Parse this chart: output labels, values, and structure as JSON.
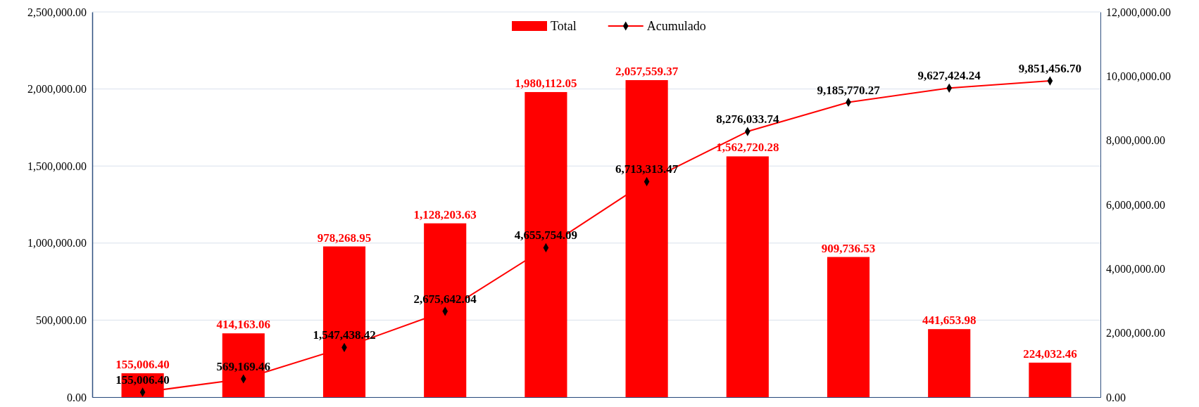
{
  "chart_data": {
    "type": "bar",
    "categories": [
      null,
      null,
      null,
      null,
      null,
      null,
      null,
      null,
      null,
      null
    ],
    "series": [
      {
        "name": "Total",
        "color": "#ff0000",
        "values": [
          155006.4,
          414163.06,
          978268.95,
          1128203.63,
          1980112.05,
          2057559.37,
          1562720.28,
          909736.53,
          441653.98,
          224032.46
        ],
        "value_labels": [
          "155,006.40",
          "414,163.06",
          "978,268.95",
          "1,128,203.63",
          "1,980,112.05",
          "2,057,559.37",
          "1,562,720.28",
          "909,736.53",
          "441,653.98",
          "224,032.46"
        ]
      },
      {
        "name": "Acumulado",
        "type": "line",
        "axis": "y2",
        "color": "#ff0000",
        "values": [
          155006.4,
          569169.46,
          1547438.42,
          2675642.04,
          4655754.09,
          6713313.47,
          8276033.74,
          9185770.27,
          9627424.24,
          9851456.7
        ],
        "value_labels": [
          "155,006.40",
          "569,169.46",
          "1,547,438.42",
          "2,675,642.04",
          "4,655,754.09",
          "6,713,313.47",
          "8,276,033.74",
          "9,185,770.27",
          "9,627,424.24",
          "9,851,456.70"
        ]
      }
    ],
    "ylim": [
      0,
      2500000
    ],
    "yticks": [
      {
        "value": 0,
        "label": "0.00"
      },
      {
        "value": 500000,
        "label": "500,000.00"
      },
      {
        "value": 1000000,
        "label": "1,000,000.00"
      },
      {
        "value": 1500000,
        "label": "1,500,000.00"
      },
      {
        "value": 2000000,
        "label": "2,000,000.00"
      },
      {
        "value": 2500000,
        "label": "2,500,000.00"
      }
    ],
    "y2lim": [
      0,
      12000000
    ],
    "y2ticks": [
      {
        "value": 0,
        "label": "0.00"
      },
      {
        "value": 2000000,
        "label": "2,000,000.00"
      },
      {
        "value": 4000000,
        "label": "4,000,000.00"
      },
      {
        "value": 6000000,
        "label": "6,000,000.00"
      },
      {
        "value": 8000000,
        "label": "8,000,000.00"
      },
      {
        "value": 10000000,
        "label": "10,000,000.00"
      },
      {
        "value": 12000000,
        "label": "12,000,000.00"
      }
    ],
    "grid": "y",
    "legend": "top",
    "marker": "diamond"
  }
}
